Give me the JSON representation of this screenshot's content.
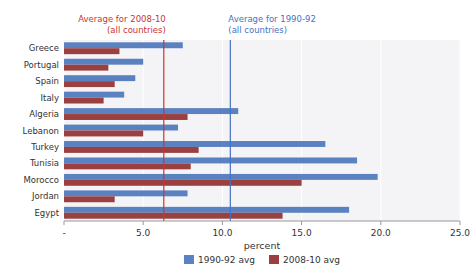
{
  "chart_data": {
    "type": "bar",
    "orientation": "horizontal",
    "categories": [
      "Greece",
      "Portugal",
      "Spain",
      "Italy",
      "Algeria",
      "Lebanon",
      "Turkey",
      "Tunisia",
      "Morocco",
      "Jordan",
      "Egypt"
    ],
    "series": [
      {
        "name": "1990-92 avg",
        "color": "#5B82C0",
        "values": [
          7.5,
          5.0,
          4.5,
          3.8,
          11.0,
          7.2,
          16.5,
          18.5,
          19.8,
          7.8,
          18.0
        ]
      },
      {
        "name": "2008-10 avg",
        "color": "#9B4040",
        "values": [
          3.5,
          2.8,
          3.2,
          2.5,
          7.8,
          5.0,
          8.5,
          8.0,
          15.0,
          3.2,
          13.8
        ]
      }
    ],
    "xlim": [
      0,
      25.0
    ],
    "xticks": [
      {
        "value": 0,
        "label": "-"
      },
      {
        "value": 5.0,
        "label": "5.0"
      },
      {
        "value": 10.0,
        "label": "10.0"
      },
      {
        "value": 15.0,
        "label": "15.0"
      },
      {
        "value": 20.0,
        "label": "20.0"
      },
      {
        "value": 25.0,
        "label": "25.0"
      }
    ],
    "xlabel": "percent",
    "grid": true,
    "legend": "bottom",
    "annotations": [
      {
        "value": 6.3,
        "label": [
          "Average for 2008-10",
          "(all countries)"
        ],
        "color": "#CC3333"
      },
      {
        "value": 10.5,
        "label": [
          "Average for 1990-92",
          "(all countries)"
        ],
        "color": "#4472C4"
      }
    ]
  }
}
